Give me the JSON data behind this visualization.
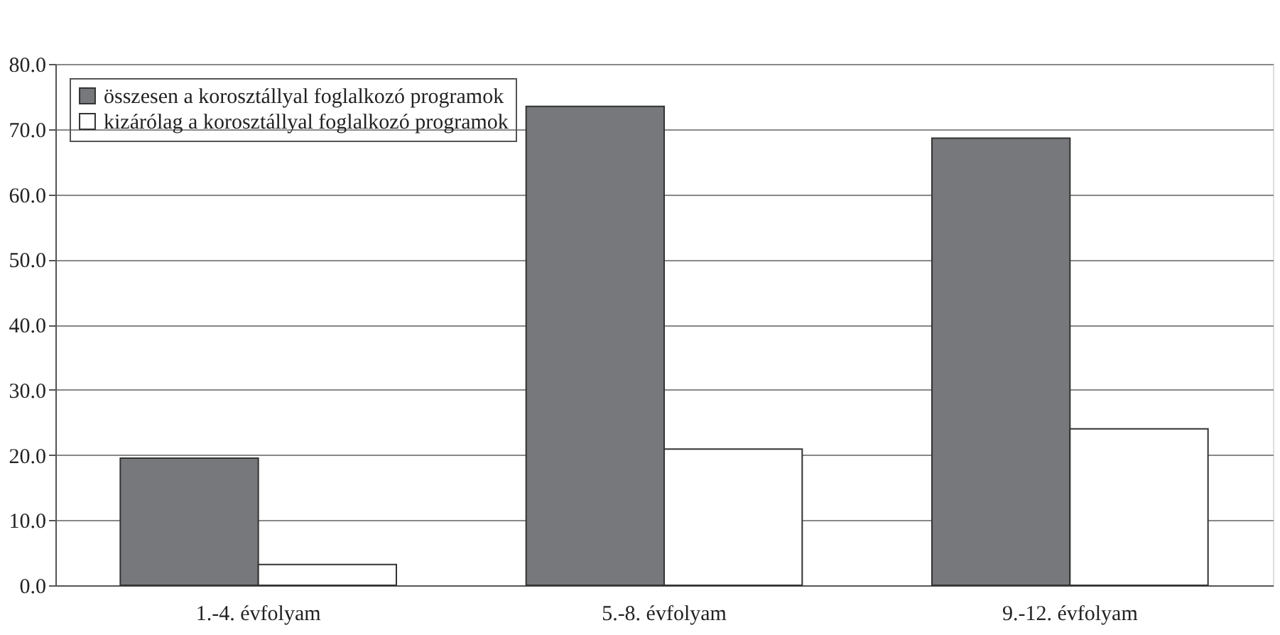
{
  "chart_data": {
    "type": "bar",
    "categories": [
      "1.-4. évfolyam",
      "5.-8. évfolyam",
      "9.-12. évfolyam"
    ],
    "series": [
      {
        "name": "összesen a korosztállyal foglalkozó programok",
        "color": "#77787b",
        "values": [
          19.5,
          73.5,
          68.6
        ]
      },
      {
        "name": "kizárólag a korosztállyal foglalkozó programok",
        "color": "#ffffff",
        "values": [
          3.2,
          20.9,
          24.0
        ]
      }
    ],
    "ylim": [
      0,
      80
    ],
    "yticks": [
      {
        "value": 0,
        "label": "0.0"
      },
      {
        "value": 10,
        "label": "10.0"
      },
      {
        "value": 20,
        "label": "20.0"
      },
      {
        "value": 30,
        "label": "30.0"
      },
      {
        "value": 40,
        "label": "40.0"
      },
      {
        "value": 50,
        "label": "50.0"
      },
      {
        "value": 60,
        "label": "60.0"
      },
      {
        "value": 70,
        "label": "70.0"
      },
      {
        "value": 80,
        "label": "80.0"
      }
    ],
    "grid": "y",
    "legend": "top left"
  }
}
